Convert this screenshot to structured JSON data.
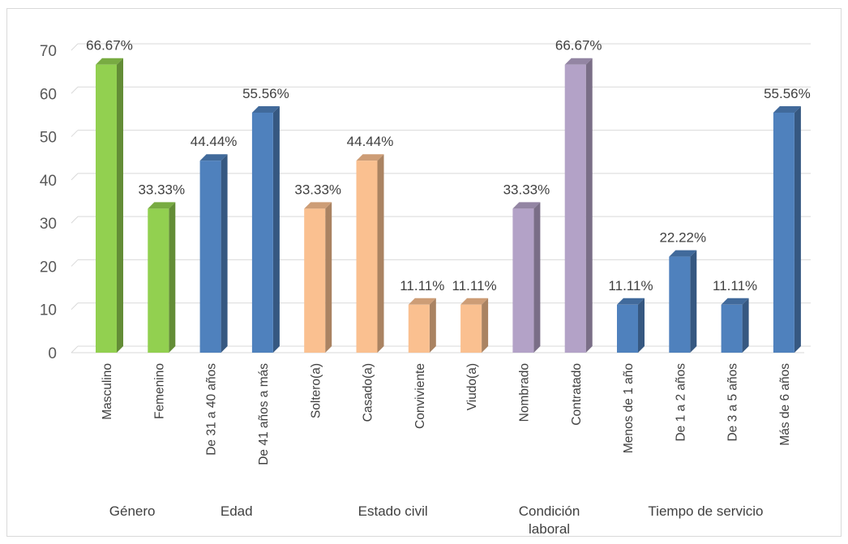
{
  "chart_data": {
    "type": "bar",
    "ylim": [
      0,
      70
    ],
    "yticks": [
      "0",
      "10",
      "20",
      "30",
      "40",
      "50",
      "60",
      "70"
    ],
    "grid": true,
    "categories": [
      "Masculino",
      "Femenino",
      "De 31 a 40 años",
      "De 41 años a más",
      "Soltero(a)",
      "Casado(a)",
      "Conviviente",
      "Viudo(a)",
      "Nombrado",
      "Contratado",
      "Menos de 1 año",
      "De 1 a 2 años",
      "De 3 a 5 años",
      "Más de 6 años"
    ],
    "values": [
      66.67,
      33.33,
      44.44,
      55.56,
      33.33,
      44.44,
      11.11,
      11.11,
      33.33,
      66.67,
      11.11,
      22.22,
      11.11,
      55.56
    ],
    "data_labels": [
      "66.67%",
      "33.33%",
      "44.44%",
      "55.56%",
      "33.33%",
      "44.44%",
      "11.11%",
      "11.11%",
      "33.33%",
      "66.67%",
      "11.11%",
      "22.22%",
      "11.11%",
      ""
    ],
    "groups": [
      {
        "label": "Género",
        "start": 0,
        "end": 1
      },
      {
        "label": "Edad",
        "start": 2,
        "end": 3
      },
      {
        "label": "Estado civil",
        "start": 4,
        "end": 7
      },
      {
        "label": "Condición\nlaboral",
        "start": 8,
        "end": 9
      },
      {
        "label": "Tiempo de servicio",
        "start": 10,
        "end": 13
      }
    ],
    "colors": [
      "#92d050",
      "#92d050",
      "#4f81bd",
      "#4f81bd",
      "#fac090",
      "#fac090",
      "#fac090",
      "#fac090",
      "#b3a2c7",
      "#b3a2c7",
      "#4f81bd",
      "#4f81bd",
      "#4f81bd",
      "#4f81bd"
    ],
    "top_right_label": "55.56%"
  }
}
